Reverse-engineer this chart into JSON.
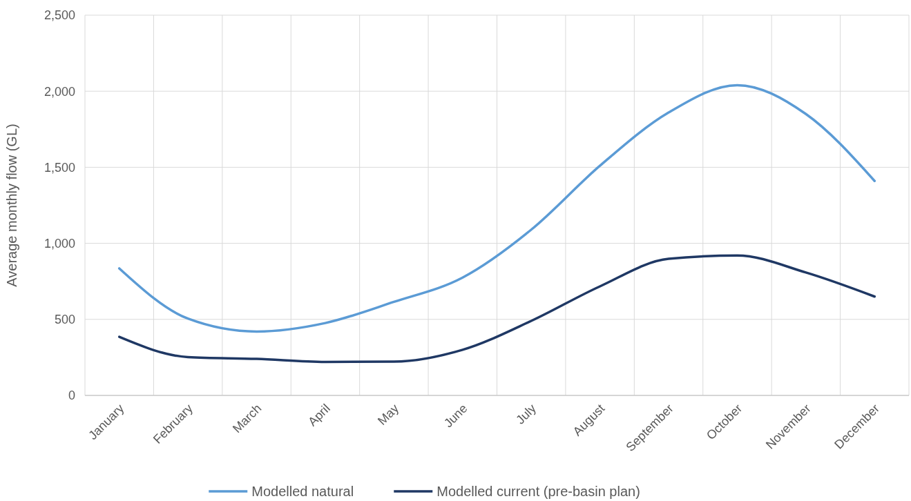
{
  "chart_data": {
    "type": "line",
    "ylabel": "Average monthly flow (GL)",
    "categories": [
      "January",
      "February",
      "March",
      "April",
      "May",
      "June",
      "July",
      "August",
      "September",
      "October",
      "November",
      "December"
    ],
    "series": [
      {
        "name": "Modelled natural",
        "color": "#5b9bd5",
        "values": [
          835,
          505,
          420,
          476,
          615,
          775,
          1090,
          1510,
          1860,
          2040,
          1850,
          1410
        ]
      },
      {
        "name": "Modelled current (pre-basin plan)",
        "color": "#1f3864",
        "values": [
          385,
          252,
          240,
          220,
          222,
          300,
          490,
          717,
          898,
          920,
          808,
          650
        ]
      }
    ],
    "ylim": [
      0,
      2500
    ],
    "yticks": [
      {
        "value": 0,
        "label": "0"
      },
      {
        "value": 500,
        "label": "500"
      },
      {
        "value": 1000,
        "label": "1,000"
      },
      {
        "value": 1500,
        "label": "1,500"
      },
      {
        "value": 2000,
        "label": "2,000"
      },
      {
        "value": 2500,
        "label": "2,500"
      }
    ],
    "grid": true,
    "legend": "bottom",
    "marker": "none",
    "line_style": "solid"
  }
}
